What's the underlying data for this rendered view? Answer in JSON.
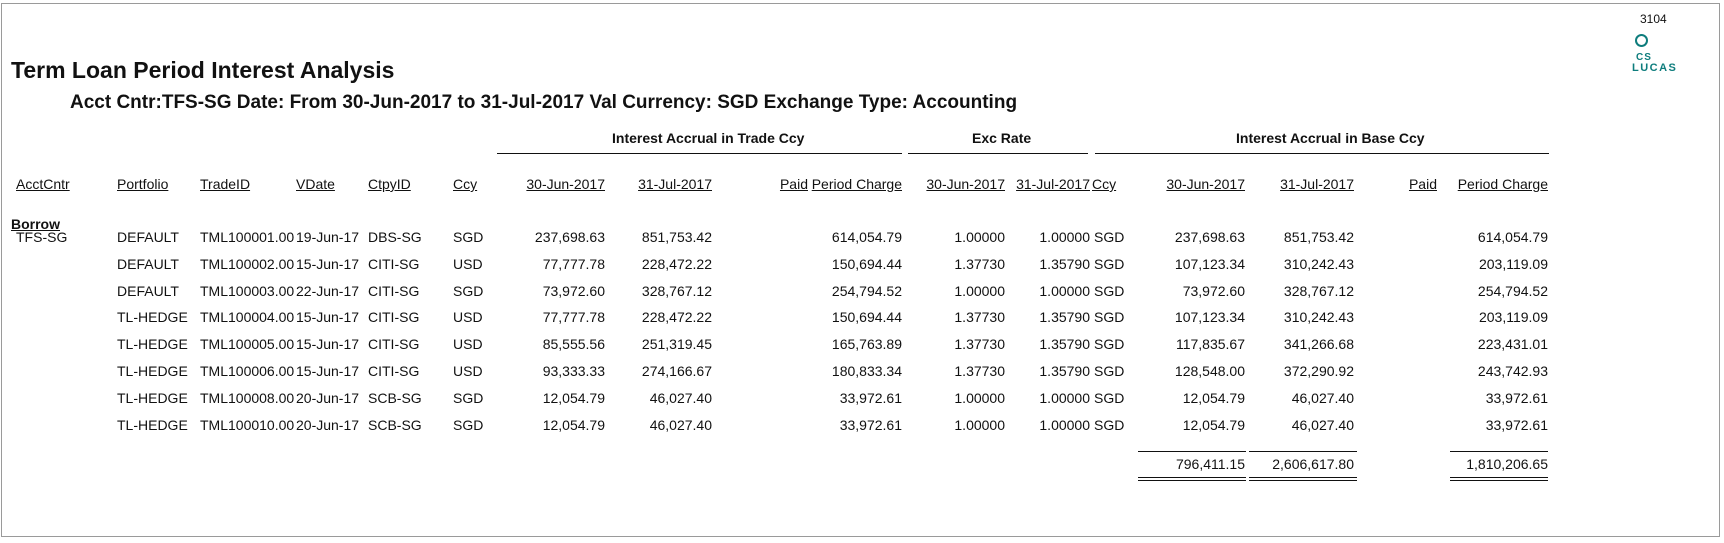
{
  "page_number": "3104",
  "logo": {
    "line1": "CS",
    "line2": "LUCAS"
  },
  "report": {
    "title": "Term Loan Period Interest Analysis",
    "subtitle": "Acct Cntr:TFS-SG Date: From  30-Jun-2017 to  31-Jul-2017 Val Currency: SGD Exchange Type: Accounting"
  },
  "group_headers": {
    "trade_ccy": "Interest Accrual in Trade Ccy",
    "exc_rate": "Exc Rate",
    "base_ccy": "Interest Accrual in Base Ccy"
  },
  "columns": {
    "acctcntr": "AcctCntr",
    "portfolio": "Portfolio",
    "tradeid": "TradeID",
    "vdate": "VDate",
    "ctpyid": "CtpyID",
    "ccy": "Ccy",
    "t_start": "30-Jun-2017",
    "t_end": "31-Jul-2017",
    "t_paid": "Paid",
    "t_period": "Period Charge",
    "x_start": "30-Jun-2017",
    "x_end": "31-Jul-2017",
    "base_ccy": "Ccy",
    "b_start": "30-Jun-2017",
    "b_end": "31-Jul-2017",
    "b_paid": "Paid",
    "b_period": "Period Charge"
  },
  "section": "Borrow",
  "rows": [
    {
      "acctcntr": "TFS-SG",
      "portfolio": "DEFAULT",
      "tradeid": "TML100001.00",
      "vdate": "19-Jun-17",
      "ctpyid": "DBS-SG",
      "ccy": "SGD",
      "t_start": "237,698.63",
      "t_end": "851,753.42",
      "t_paid": "",
      "t_period": "614,054.79",
      "x_start": "1.00000",
      "x_end": "1.00000",
      "base_ccy": "SGD",
      "b_start": "237,698.63",
      "b_end": "851,753.42",
      "b_paid": "",
      "b_period": "614,054.79"
    },
    {
      "acctcntr": "",
      "portfolio": "DEFAULT",
      "tradeid": "TML100002.00",
      "vdate": "15-Jun-17",
      "ctpyid": "CITI-SG",
      "ccy": "USD",
      "t_start": "77,777.78",
      "t_end": "228,472.22",
      "t_paid": "",
      "t_period": "150,694.44",
      "x_start": "1.37730",
      "x_end": "1.35790",
      "base_ccy": "SGD",
      "b_start": "107,123.34",
      "b_end": "310,242.43",
      "b_paid": "",
      "b_period": "203,119.09"
    },
    {
      "acctcntr": "",
      "portfolio": "DEFAULT",
      "tradeid": "TML100003.00",
      "vdate": "22-Jun-17",
      "ctpyid": "CITI-SG",
      "ccy": "SGD",
      "t_start": "73,972.60",
      "t_end": "328,767.12",
      "t_paid": "",
      "t_period": "254,794.52",
      "x_start": "1.00000",
      "x_end": "1.00000",
      "base_ccy": "SGD",
      "b_start": "73,972.60",
      "b_end": "328,767.12",
      "b_paid": "",
      "b_period": "254,794.52"
    },
    {
      "acctcntr": "",
      "portfolio": "TL-HEDGE",
      "tradeid": "TML100004.00",
      "vdate": "15-Jun-17",
      "ctpyid": "CITI-SG",
      "ccy": "USD",
      "t_start": "77,777.78",
      "t_end": "228,472.22",
      "t_paid": "",
      "t_period": "150,694.44",
      "x_start": "1.37730",
      "x_end": "1.35790",
      "base_ccy": "SGD",
      "b_start": "107,123.34",
      "b_end": "310,242.43",
      "b_paid": "",
      "b_period": "203,119.09"
    },
    {
      "acctcntr": "",
      "portfolio": "TL-HEDGE",
      "tradeid": "TML100005.00",
      "vdate": "15-Jun-17",
      "ctpyid": "CITI-SG",
      "ccy": "USD",
      "t_start": "85,555.56",
      "t_end": "251,319.45",
      "t_paid": "",
      "t_period": "165,763.89",
      "x_start": "1.37730",
      "x_end": "1.35790",
      "base_ccy": "SGD",
      "b_start": "117,835.67",
      "b_end": "341,266.68",
      "b_paid": "",
      "b_period": "223,431.01"
    },
    {
      "acctcntr": "",
      "portfolio": "TL-HEDGE",
      "tradeid": "TML100006.00",
      "vdate": "15-Jun-17",
      "ctpyid": "CITI-SG",
      "ccy": "USD",
      "t_start": "93,333.33",
      "t_end": "274,166.67",
      "t_paid": "",
      "t_period": "180,833.34",
      "x_start": "1.37730",
      "x_end": "1.35790",
      "base_ccy": "SGD",
      "b_start": "128,548.00",
      "b_end": "372,290.92",
      "b_paid": "",
      "b_period": "243,742.93"
    },
    {
      "acctcntr": "",
      "portfolio": "TL-HEDGE",
      "tradeid": "TML100008.00",
      "vdate": "20-Jun-17",
      "ctpyid": "SCB-SG",
      "ccy": "SGD",
      "t_start": "12,054.79",
      "t_end": "46,027.40",
      "t_paid": "",
      "t_period": "33,972.61",
      "x_start": "1.00000",
      "x_end": "1.00000",
      "base_ccy": "SGD",
      "b_start": "12,054.79",
      "b_end": "46,027.40",
      "b_paid": "",
      "b_period": "33,972.61"
    },
    {
      "acctcntr": "",
      "portfolio": "TL-HEDGE",
      "tradeid": "TML100010.00",
      "vdate": "20-Jun-17",
      "ctpyid": "SCB-SG",
      "ccy": "SGD",
      "t_start": "12,054.79",
      "t_end": "46,027.40",
      "t_paid": "",
      "t_period": "33,972.61",
      "x_start": "1.00000",
      "x_end": "1.00000",
      "base_ccy": "SGD",
      "b_start": "12,054.79",
      "b_end": "46,027.40",
      "b_paid": "",
      "b_period": "33,972.61"
    }
  ],
  "totals": {
    "b_start": "796,411.15",
    "b_end": "2,606,617.80",
    "b_period": "1,810,206.65"
  }
}
